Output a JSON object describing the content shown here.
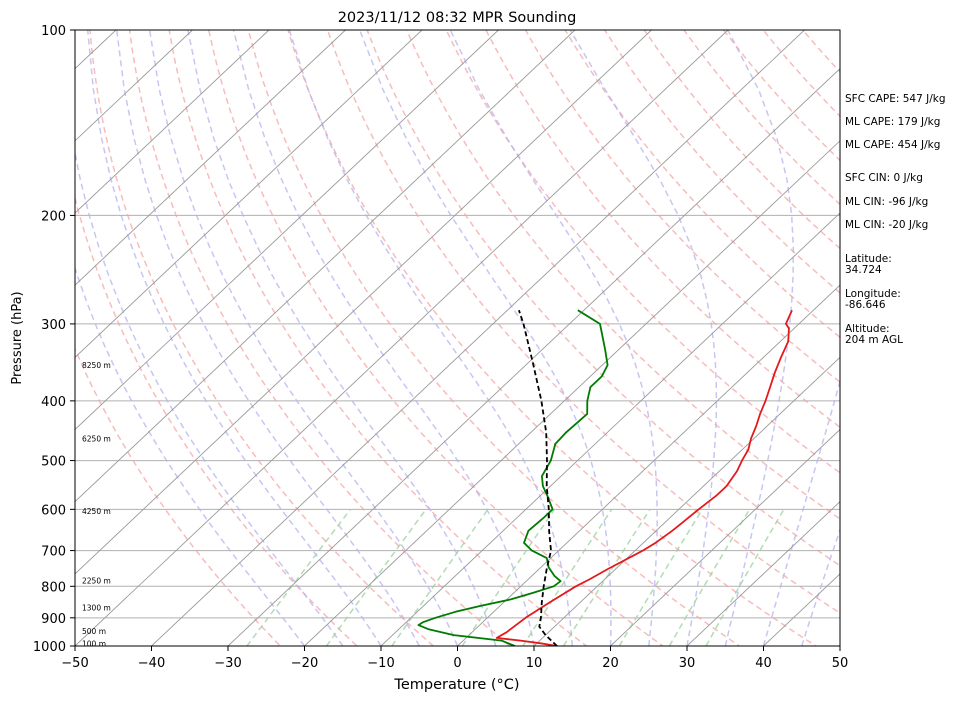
{
  "chart_data": {
    "type": "skew-t",
    "title": "2023/11/12 08:32 MPR Sounding",
    "xlabel": "Temperature (°C)",
    "ylabel": "Pressure (hPa)",
    "xlim": [
      -50,
      50
    ],
    "ylim": [
      1000,
      100
    ],
    "y_scale": "log",
    "x_ticks": [
      "−50",
      "−40",
      "−30",
      "−20",
      "−10",
      "0",
      "10",
      "20",
      "30",
      "40",
      "50"
    ],
    "y_ticks": [
      "100",
      "200",
      "300",
      "400",
      "500",
      "600",
      "700",
      "800",
      "900",
      "1000"
    ],
    "grid": true,
    "height_labels": [
      {
        "label": "8250 m",
        "p": 350
      },
      {
        "label": "6250 m",
        "p": 460
      },
      {
        "label": "4250 m",
        "p": 604
      },
      {
        "label": "2250 m",
        "p": 783
      },
      {
        "label": "1300 m",
        "p": 866
      },
      {
        "label": "500 m",
        "p": 945
      },
      {
        "label": "100 m",
        "p": 990
      }
    ],
    "series": [
      {
        "role": "temperature",
        "color": "#e31a1c",
        "points": [
          [
            1000,
            13.0
          ],
          [
            990,
            10.5
          ],
          [
            980,
            7.5
          ],
          [
            970,
            4.0
          ],
          [
            950,
            4.5
          ],
          [
            900,
            5.0
          ],
          [
            850,
            6.0
          ],
          [
            800,
            7.2
          ],
          [
            780,
            8.0
          ],
          [
            750,
            9.0
          ],
          [
            700,
            11.0
          ],
          [
            680,
            11.6
          ],
          [
            650,
            12.1
          ],
          [
            630,
            12.3
          ],
          [
            600,
            12.6
          ],
          [
            570,
            13.0
          ],
          [
            550,
            13.0
          ],
          [
            520,
            12.3
          ],
          [
            500,
            11.5
          ],
          [
            480,
            10.8
          ],
          [
            460,
            9.6
          ],
          [
            440,
            8.6
          ],
          [
            420,
            7.4
          ],
          [
            400,
            6.3
          ],
          [
            380,
            5.0
          ],
          [
            360,
            3.6
          ],
          [
            340,
            2.3
          ],
          [
            320,
            1.0
          ],
          [
            305,
            -0.7
          ],
          [
            300,
            -1.7
          ],
          [
            285,
            -2.8
          ]
        ]
      },
      {
        "role": "dewpoint",
        "color": "#007a00",
        "points": [
          [
            1000,
            7.5
          ],
          [
            980,
            5.0
          ],
          [
            960,
            -2.0
          ],
          [
            940,
            -6.0
          ],
          [
            925,
            -8.0
          ],
          [
            915,
            -7.8
          ],
          [
            900,
            -6.8
          ],
          [
            880,
            -5.0
          ],
          [
            860,
            -2.5
          ],
          [
            840,
            0.5
          ],
          [
            820,
            2.5
          ],
          [
            800,
            4.3
          ],
          [
            785,
            4.5
          ],
          [
            770,
            3.0
          ],
          [
            745,
            1.0
          ],
          [
            720,
            -0.5
          ],
          [
            700,
            -3.5
          ],
          [
            680,
            -5.6
          ],
          [
            650,
            -6.7
          ],
          [
            620,
            -6.5
          ],
          [
            600,
            -6.5
          ],
          [
            570,
            -9.1
          ],
          [
            550,
            -11.0
          ],
          [
            530,
            -12.5
          ],
          [
            500,
            -13.5
          ],
          [
            470,
            -15.2
          ],
          [
            450,
            -15.4
          ],
          [
            420,
            -15.2
          ],
          [
            400,
            -17.0
          ],
          [
            380,
            -18.5
          ],
          [
            365,
            -18.5
          ],
          [
            350,
            -19.3
          ],
          [
            330,
            -21.8
          ],
          [
            300,
            -26.0
          ],
          [
            285,
            -30.8
          ]
        ]
      },
      {
        "role": "parcel",
        "color": "#000000",
        "points": [
          [
            1000,
            13.0
          ],
          [
            960,
            10.0
          ],
          [
            930,
            8.0
          ],
          [
            900,
            7.0
          ],
          [
            850,
            5.0
          ],
          [
            800,
            3.0
          ],
          [
            750,
            1.0
          ],
          [
            700,
            -1.0
          ],
          [
            650,
            -4.0
          ],
          [
            600,
            -7.0
          ],
          [
            550,
            -10.5
          ],
          [
            500,
            -14.0
          ],
          [
            450,
            -18.0
          ],
          [
            400,
            -23.0
          ],
          [
            350,
            -29.0
          ],
          [
            300,
            -36.0
          ],
          [
            285,
            -38.5
          ]
        ]
      }
    ],
    "stats": [
      "SFC CAPE: 547 J/kg",
      "ML CAPE: 179 J/kg",
      "ML CAPE: 454 J/kg",
      "SFC CIN: 0 J/kg",
      "ML CIN: -96 J/kg",
      "ML CIN: -20 J/kg",
      "Latitude:",
      "34.724",
      "Longitude:",
      "-86.646",
      "Altitude:",
      "204 m AGL"
    ]
  },
  "colors": {
    "temperature": "#e31a1c",
    "dewpoint": "#007a00",
    "parcel": "#000000",
    "dry_adiabat": "#f4a6a6",
    "moist_adiabat": "#b3b3f0",
    "mixing_ratio": "#9fd39f",
    "isotherm": "#9a9a9a"
  }
}
